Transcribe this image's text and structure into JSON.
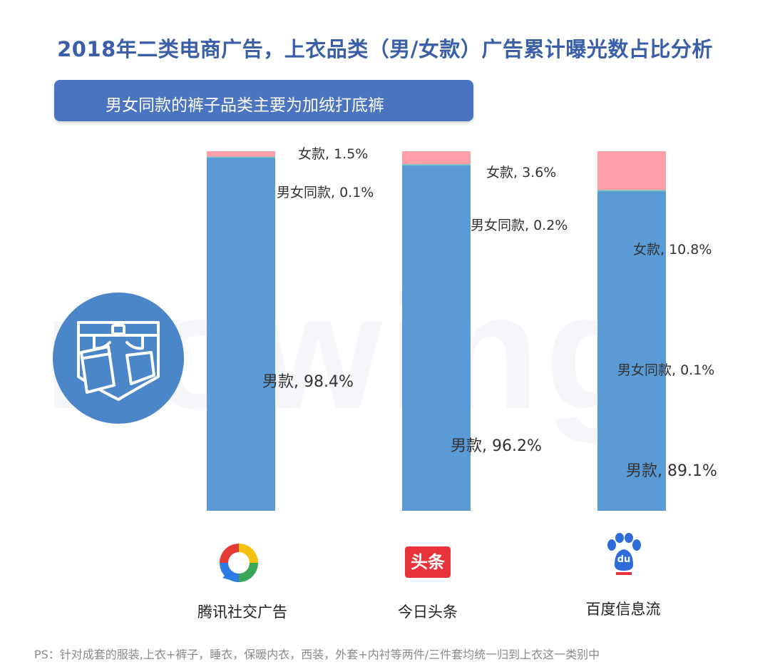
{
  "title": "2018年二类电商广告，上衣品类（男/女款）广告累计曝光数占比分析",
  "subtitle": "男女同款的裤子品类主要为加绒打底裤",
  "watermark": "nowing",
  "footnote": "PS：针对成套的服装,上衣+裤子，睡衣，保暖内衣，西装，外套+内衬等两件/三件套均统一归到上衣这一类别中",
  "colors": {
    "男款": "#5b9bd5",
    "男女同款": "#6fc6c6",
    "女款": "#ff9fa9",
    "title": "#3a5fa8",
    "banner": "#4a73c0"
  },
  "platforms": [
    {
      "name": "腾讯社交广告",
      "logo": "tencent-social-ads-logo"
    },
    {
      "name": "今日头条",
      "logo": "toutiao-logo",
      "logo_text": "头条"
    },
    {
      "name": "百度信息流",
      "logo": "baidu-paw-logo",
      "logo_text": "du"
    }
  ],
  "chart_data": {
    "type": "bar",
    "stacked": true,
    "normalized": true,
    "categories": [
      "腾讯社交广告",
      "今日头条",
      "百度信息流"
    ],
    "series": [
      {
        "name": "男款",
        "values": [
          98.4,
          96.2,
          89.1
        ]
      },
      {
        "name": "男女同款",
        "values": [
          0.1,
          0.2,
          0.1
        ]
      },
      {
        "name": "女款",
        "values": [
          1.5,
          3.6,
          10.8
        ]
      }
    ],
    "data_labels": [
      [
        "男款, 98.4%",
        "男女同款, 0.1%",
        "女款, 1.5%"
      ],
      [
        "男款, 96.2%",
        "男女同款, 0.2%",
        "女款, 3.6%"
      ],
      [
        "男款, 89.1%",
        "男女同款, 0.1%",
        "女款, 10.8%"
      ]
    ],
    "unit": "%",
    "ylim": [
      0,
      100
    ],
    "grid": false,
    "legend": "none"
  }
}
